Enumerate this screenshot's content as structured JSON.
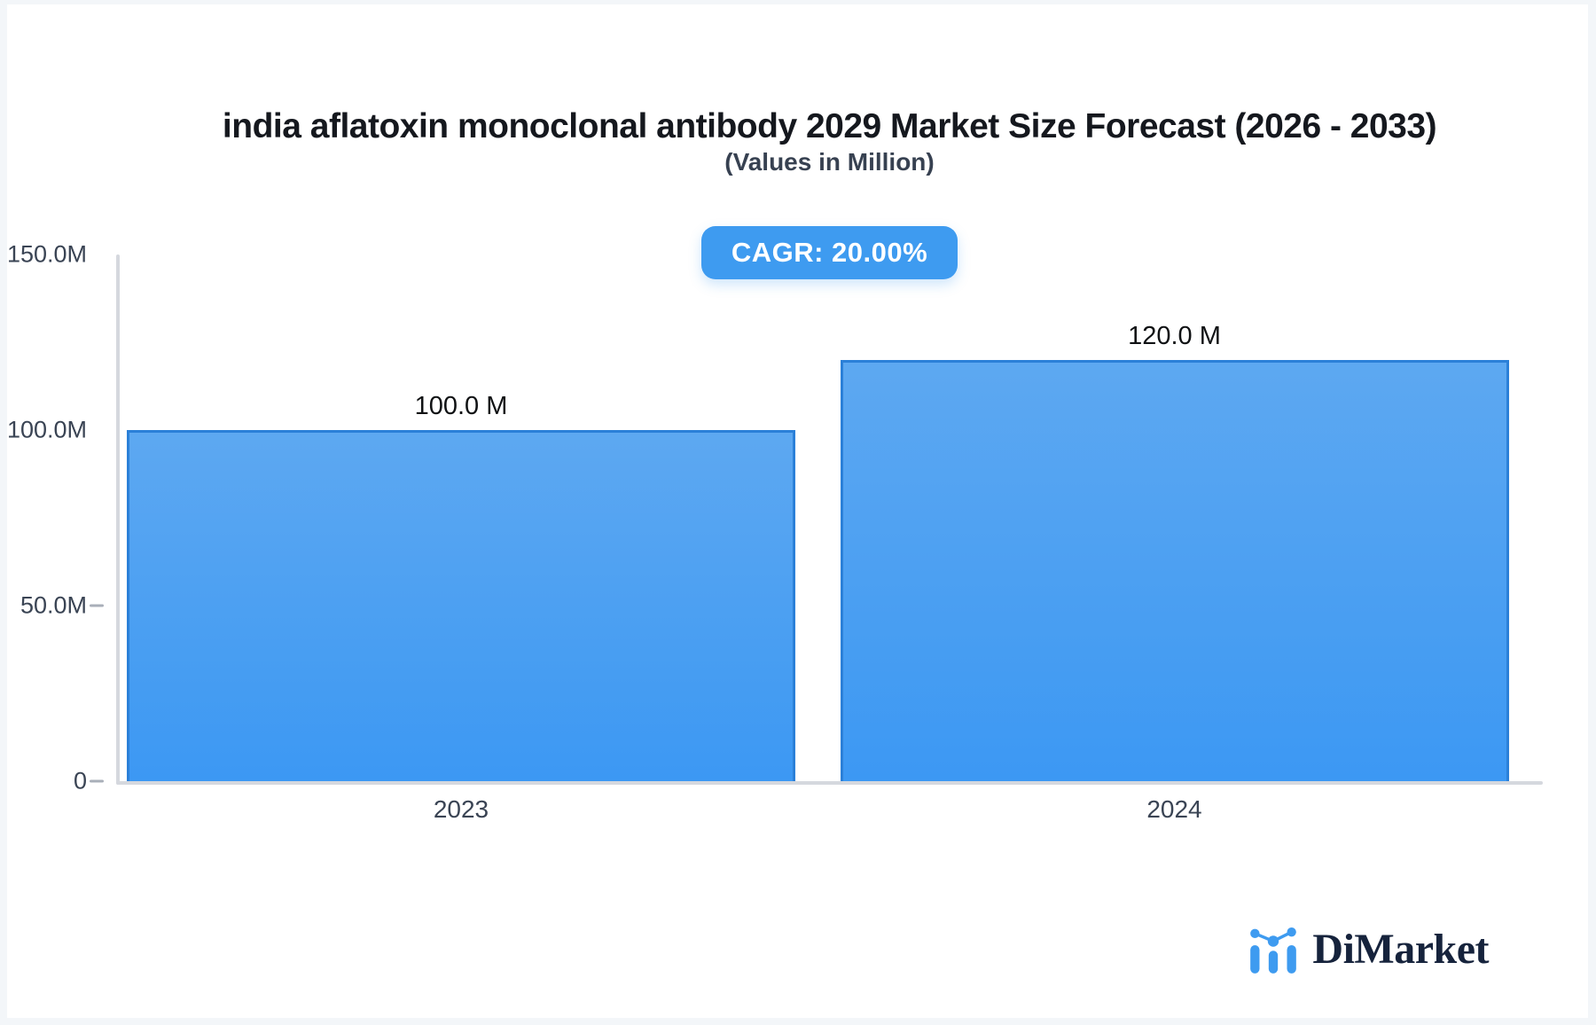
{
  "colors": {
    "accent_blue": "#3E9BF0",
    "bar_fill_top": "#5DA8F1",
    "bar_fill_bottom": "#3C98F3",
    "bar_border": "#2B80D8",
    "axis_line": "#D5D8DE",
    "tick_dash": "#A9AFB9",
    "axis_text": "#3A4454",
    "title_text": "#15181E",
    "badge_bg": "#3E9BF0",
    "badge_text": "#FFFFFF",
    "brand_navy": "#16233C",
    "page_bg": "#F3F6F9",
    "card_bg": "#FFFFFF"
  },
  "header": {
    "title": "india aflatoxin monoclonal antibody 2029 Market Size Forecast (2026 - 2033)",
    "subtitle": "(Values in Million)",
    "cagr_badge": "CAGR: 20.00%"
  },
  "chart_data": {
    "type": "bar",
    "title": "india aflatoxin monoclonal antibody 2029 Market Size Forecast (2026 - 2033)",
    "subtitle": "(Values in Million)",
    "units": "Million",
    "cagr_percent": 20.0,
    "categories": [
      "2023",
      "2024"
    ],
    "values": [
      100.0,
      120.0
    ],
    "value_labels": [
      "100.0 M",
      "120.0 M"
    ],
    "xlabel": "",
    "ylabel": "",
    "ylim": [
      0,
      150
    ],
    "yticks": [
      {
        "value": 150,
        "label": "150.0M",
        "dash": false
      },
      {
        "value": 100,
        "label": "100.0M",
        "dash": false
      },
      {
        "value": 50,
        "label": "50.0M",
        "dash": true
      },
      {
        "value": 0,
        "label": "0",
        "dash": true
      }
    ],
    "grid": false,
    "legend": "none"
  },
  "footer": {
    "brand": "DiMarket",
    "brand_icon": "bar-line-chart-icon"
  }
}
